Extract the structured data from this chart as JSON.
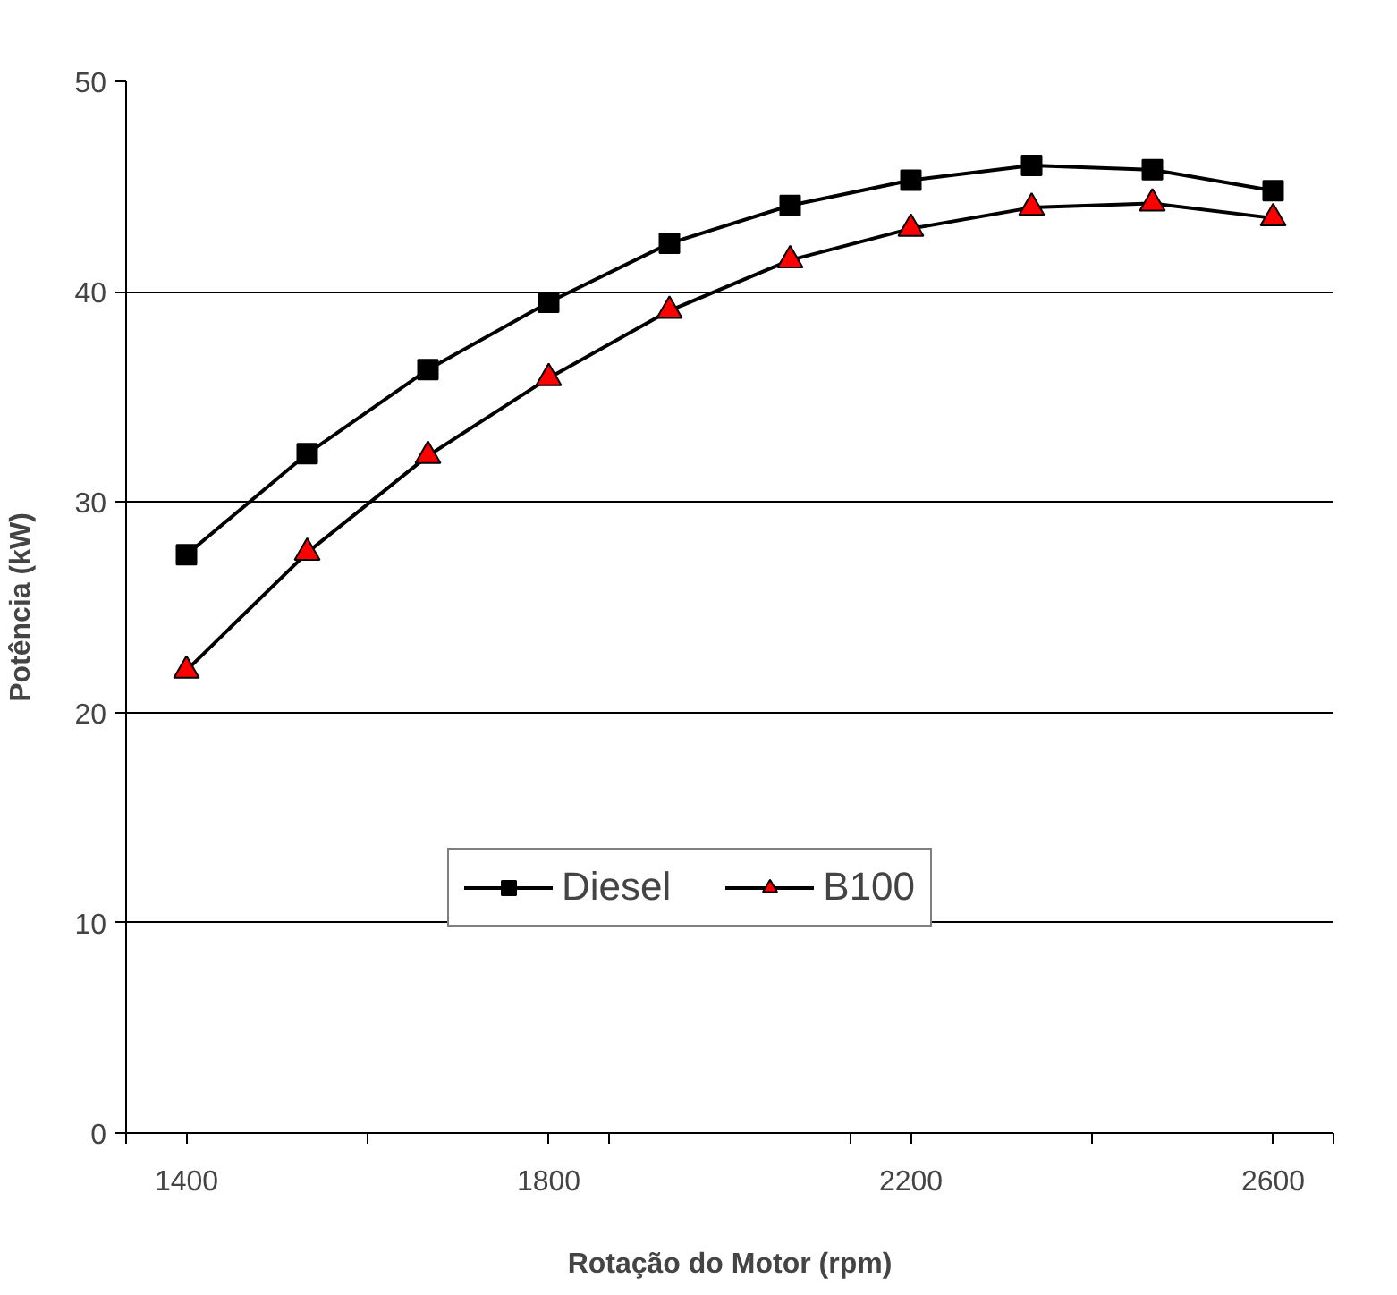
{
  "chart_data": {
    "type": "line",
    "xlabel": "Rotação do Motor (rpm)",
    "ylabel": "Potência (kW)",
    "categories": [
      "1400",
      null,
      null,
      "1800",
      null,
      null,
      "2200",
      null,
      null,
      "2600"
    ],
    "series": [
      {
        "name": "Diesel",
        "color": "#000000",
        "marker": "square",
        "values": [
          27.5,
          32.3,
          36.3,
          39.5,
          42.3,
          44.1,
          45.3,
          46.0,
          45.8,
          44.8
        ]
      },
      {
        "name": "B100",
        "color": "#ff0000",
        "marker": "triangle",
        "values": [
          22.0,
          27.6,
          32.2,
          35.9,
          39.1,
          41.5,
          43.0,
          44.0,
          44.2,
          43.5
        ]
      }
    ],
    "ylim": [
      0,
      50
    ],
    "yticks": [
      0,
      10,
      20,
      30,
      40,
      50
    ],
    "grid": "y",
    "legend": "bottom",
    "line_style": "solid"
  }
}
